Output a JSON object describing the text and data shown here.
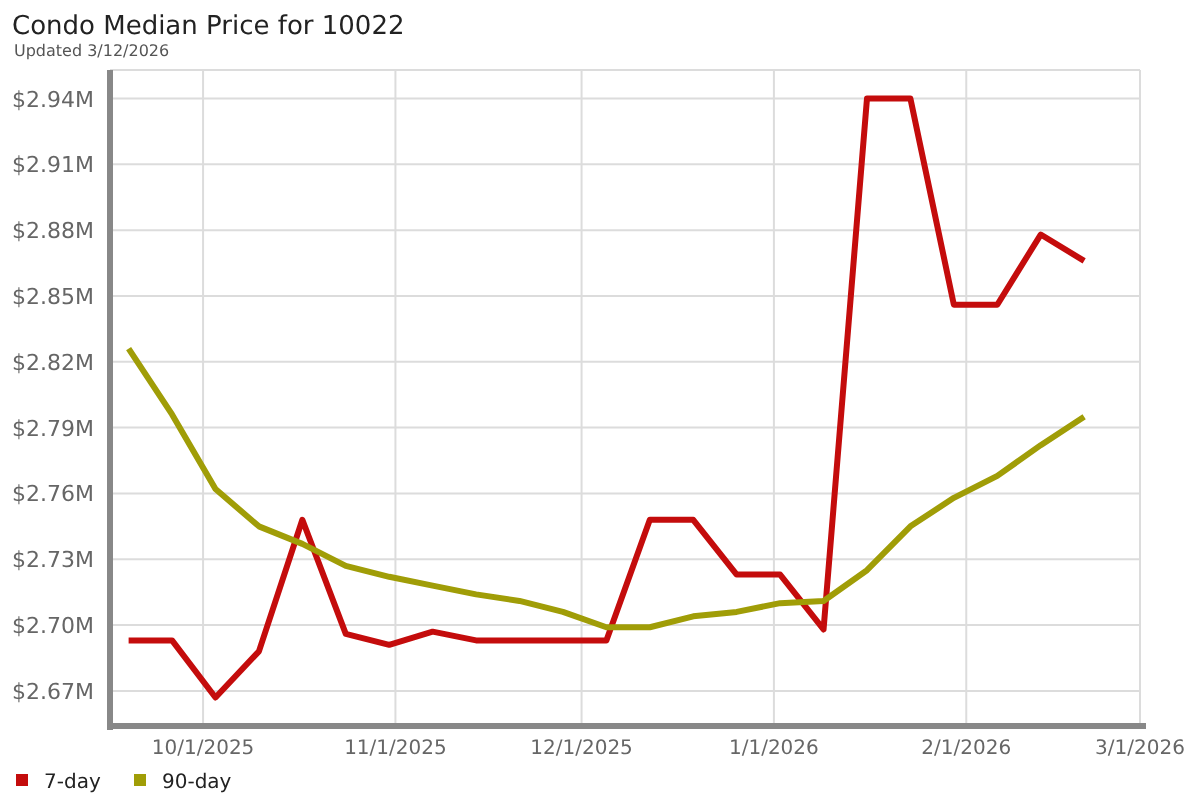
{
  "chart_data": {
    "type": "line",
    "title": "Condo Median Price for 10022",
    "subtitle": "Updated 3/12/2026",
    "x": [
      "2025-09-19",
      "2025-09-26",
      "2025-10-03",
      "2025-10-10",
      "2025-10-17",
      "2025-10-24",
      "2025-10-31",
      "2025-11-07",
      "2025-11-14",
      "2025-11-21",
      "2025-11-28",
      "2025-12-05",
      "2025-12-12",
      "2025-12-19",
      "2025-12-26",
      "2026-01-02",
      "2026-01-09",
      "2026-01-16",
      "2026-01-23",
      "2026-01-30",
      "2026-02-06",
      "2026-02-13",
      "2026-02-20"
    ],
    "series": [
      {
        "name": "7-day",
        "color": "#c40c0c",
        "values": [
          2.693,
          2.693,
          2.667,
          2.688,
          2.748,
          2.696,
          2.691,
          2.697,
          2.693,
          2.693,
          2.693,
          2.693,
          2.748,
          2.748,
          2.723,
          2.723,
          2.698,
          2.94,
          2.94,
          2.846,
          2.846,
          2.878,
          2.866
        ]
      },
      {
        "name": "90-day",
        "color": "#a09d07",
        "values": [
          2.826,
          2.796,
          2.762,
          2.745,
          2.737,
          2.727,
          2.722,
          2.718,
          2.714,
          2.711,
          2.706,
          2.699,
          2.699,
          2.704,
          2.706,
          2.71,
          2.711,
          2.725,
          2.745,
          2.758,
          2.768,
          2.782,
          2.795
        ]
      }
    ],
    "xlim": [
      "2025-09-16",
      "2026-03-01"
    ],
    "xticks": [
      {
        "value": "2025-10-01",
        "label": "10/1/2025"
      },
      {
        "value": "2025-11-01",
        "label": "11/1/2025"
      },
      {
        "value": "2025-12-01",
        "label": "12/1/2025"
      },
      {
        "value": "2026-01-01",
        "label": "1/1/2026"
      },
      {
        "value": "2026-02-01",
        "label": "2/1/2026"
      },
      {
        "value": "2026-03-01",
        "label": "3/1/2026"
      }
    ],
    "ylim": [
      2.654,
      2.953
    ],
    "yticks": [
      {
        "value": 2.67,
        "label": "$2.67M"
      },
      {
        "value": 2.7,
        "label": "$2.70M"
      },
      {
        "value": 2.73,
        "label": "$2.73M"
      },
      {
        "value": 2.76,
        "label": "$2.76M"
      },
      {
        "value": 2.79,
        "label": "$2.79M"
      },
      {
        "value": 2.82,
        "label": "$2.82M"
      },
      {
        "value": 2.85,
        "label": "$2.85M"
      },
      {
        "value": 2.88,
        "label": "$2.88M"
      },
      {
        "value": 2.91,
        "label": "$2.91M"
      },
      {
        "value": 2.94,
        "label": "$2.94M"
      }
    ],
    "grid": true,
    "legend": "bottom left",
    "marker": "none",
    "line_style": "solid"
  }
}
